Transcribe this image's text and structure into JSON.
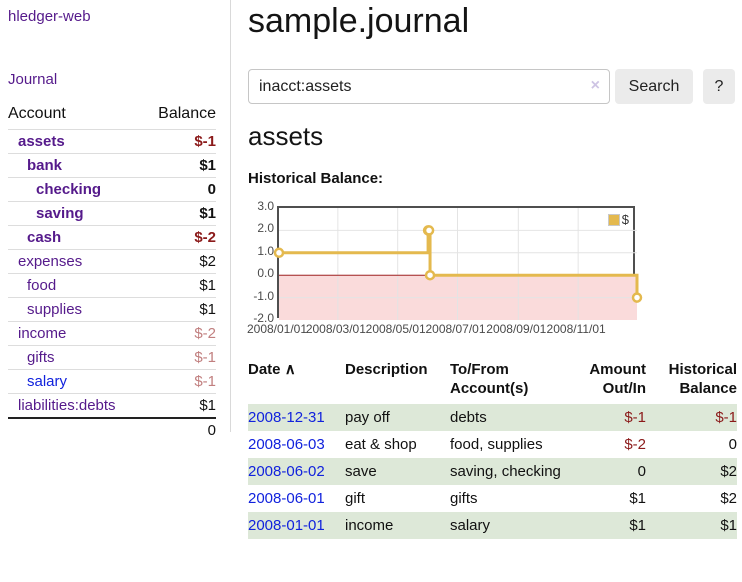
{
  "app": {
    "brand": "hledger-web",
    "nav_journal": "Journal"
  },
  "sidebar": {
    "header": {
      "account": "Account",
      "balance": "Balance"
    },
    "accounts": [
      {
        "name": "assets",
        "balance": "$-1"
      },
      {
        "name": "bank",
        "balance": "$1"
      },
      {
        "name": "checking",
        "balance": "0"
      },
      {
        "name": "saving",
        "balance": "$1"
      },
      {
        "name": "cash",
        "balance": "$-2"
      },
      {
        "name": "expenses",
        "balance": "$2"
      },
      {
        "name": "food",
        "balance": "$1"
      },
      {
        "name": "supplies",
        "balance": "$1"
      },
      {
        "name": "income",
        "balance": "$-2"
      },
      {
        "name": "gifts",
        "balance": "$-1"
      },
      {
        "name": "salary",
        "balance": "$-1"
      },
      {
        "name": "liabilities:debts",
        "balance": "$1"
      }
    ],
    "total": "0"
  },
  "main": {
    "title": "sample.journal",
    "search": {
      "value": "inacct:assets",
      "clear": "×",
      "button": "Search",
      "help": "?"
    },
    "account_heading": "assets"
  },
  "chart_data": {
    "type": "line",
    "title": "Historical Balance:",
    "step": true,
    "series": [
      {
        "name": "$",
        "color": "#e4b94e",
        "points": [
          [
            "2008-01-01",
            1
          ],
          [
            "2008-06-01",
            2
          ],
          [
            "2008-06-02",
            2
          ],
          [
            "2008-06-03",
            0
          ],
          [
            "2008-12-31",
            -1
          ]
        ]
      }
    ],
    "x_range": [
      "2008-01-01",
      "2008-12-31"
    ],
    "y_range": [
      -2,
      3
    ],
    "x_ticks": [
      {
        "date": "2008-01-01",
        "label": "2008/01/01"
      },
      {
        "date": "2008-03-01",
        "label": "2008/03/01"
      },
      {
        "date": "2008-05-01",
        "label": "2008/05/01"
      },
      {
        "date": "2008-07-01",
        "label": "2008/07/01"
      },
      {
        "date": "2008-09-01",
        "label": "2008/09/01"
      },
      {
        "date": "2008-11-01",
        "label": "2008/11/01"
      }
    ],
    "y_ticks": [
      {
        "value": 3,
        "label": "3.0"
      },
      {
        "value": 2,
        "label": "2.0"
      },
      {
        "value": 1,
        "label": "1.0"
      },
      {
        "value": 0,
        "label": "0.0"
      },
      {
        "value": -1,
        "label": "-1.0"
      },
      {
        "value": -2,
        "label": "-2.0"
      }
    ],
    "legend": {
      "position": "top-right",
      "entries": [
        {
          "label": "$",
          "color": "#e4b94e"
        }
      ]
    },
    "grid": true,
    "grid_color": "#e4e4e4",
    "negative_region_fill": "#fadbdb",
    "zero_line_color": "#a32222",
    "marker": {
      "fill": "#ffffff",
      "radius": 4
    }
  },
  "register": {
    "sort_icon": "∧",
    "headers": [
      "Date",
      "Description",
      "To/From Account(s)",
      "Amount Out/In",
      "Historical Balance"
    ],
    "rows": [
      {
        "date": "2008-12-31",
        "description": "pay off",
        "accounts": "debts",
        "amount": "$-1",
        "balance": "$-1"
      },
      {
        "date": "2008-06-03",
        "description": "eat & shop",
        "accounts": "food, supplies",
        "amount": "$-2",
        "balance": "0"
      },
      {
        "date": "2008-06-02",
        "description": "save",
        "accounts": "saving, checking",
        "amount": "0",
        "balance": "$2"
      },
      {
        "date": "2008-06-01",
        "description": "gift",
        "accounts": "gifts",
        "amount": "$1",
        "balance": "$2"
      },
      {
        "date": "2008-01-01",
        "description": "income",
        "accounts": "salary",
        "amount": "$1",
        "balance": "$1"
      }
    ]
  }
}
